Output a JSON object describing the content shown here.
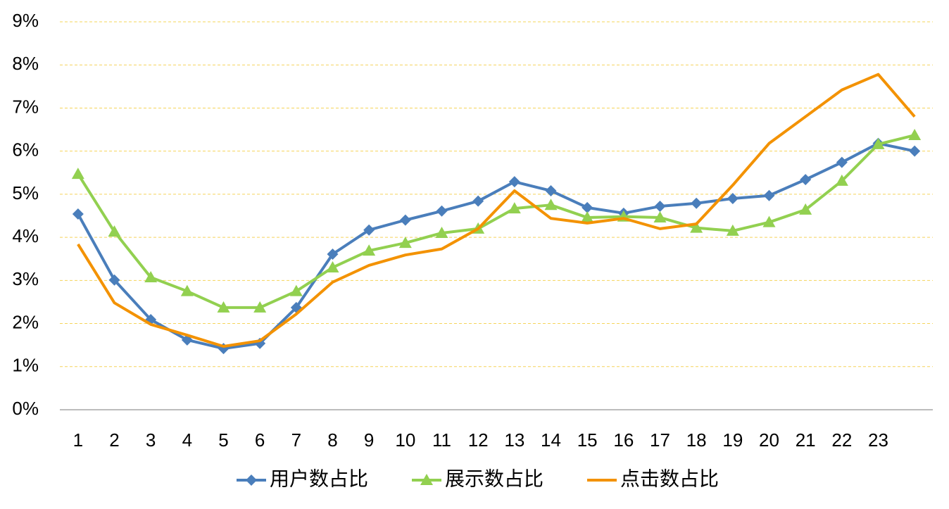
{
  "chart_data": {
    "type": "line",
    "categories": [
      "1",
      "2",
      "3",
      "4",
      "5",
      "6",
      "7",
      "8",
      "9",
      "10",
      "11",
      "12",
      "13",
      "14",
      "15",
      "16",
      "17",
      "18",
      "19",
      "20",
      "21",
      "22",
      "23",
      null
    ],
    "series": [
      {
        "name": "用户数占比",
        "color": "#4a7ebb",
        "marker": "diamond",
        "values": [
          4.54,
          3.01,
          2.09,
          1.62,
          1.42,
          1.54,
          2.37,
          3.61,
          4.17,
          4.4,
          4.61,
          4.84,
          5.29,
          5.08,
          4.69,
          4.56,
          4.72,
          4.79,
          4.9,
          4.97,
          5.34,
          5.74,
          6.18,
          6.0
        ]
      },
      {
        "name": "展示数占比",
        "color": "#92d050",
        "marker": "triangle",
        "values": [
          5.47,
          4.13,
          3.07,
          2.75,
          2.37,
          2.37,
          2.75,
          3.3,
          3.69,
          3.87,
          4.1,
          4.2,
          4.67,
          4.75,
          4.46,
          4.48,
          4.46,
          4.22,
          4.15,
          4.35,
          4.64,
          5.31,
          6.16,
          6.37
        ]
      },
      {
        "name": "点击数占比",
        "color": "#f39200",
        "marker": "none",
        "values": [
          3.84,
          2.48,
          1.98,
          1.73,
          1.47,
          1.6,
          2.22,
          2.96,
          3.35,
          3.59,
          3.73,
          4.2,
          5.08,
          4.44,
          4.33,
          4.44,
          4.2,
          4.31,
          5.21,
          6.18,
          6.8,
          7.42,
          7.78,
          6.8
        ]
      }
    ],
    "ylim": [
      0,
      9
    ],
    "yticks": [
      {
        "value": 0,
        "label": "0%"
      },
      {
        "value": 1,
        "label": "1%"
      },
      {
        "value": 2,
        "label": "2%"
      },
      {
        "value": 3,
        "label": "3%"
      },
      {
        "value": 4,
        "label": "4%"
      },
      {
        "value": 5,
        "label": "5%"
      },
      {
        "value": 6,
        "label": "6%"
      },
      {
        "value": 7,
        "label": "7%"
      },
      {
        "value": 8,
        "label": "8%"
      },
      {
        "value": 9,
        "label": "9%"
      }
    ],
    "grid": true,
    "legend": "bottom"
  }
}
